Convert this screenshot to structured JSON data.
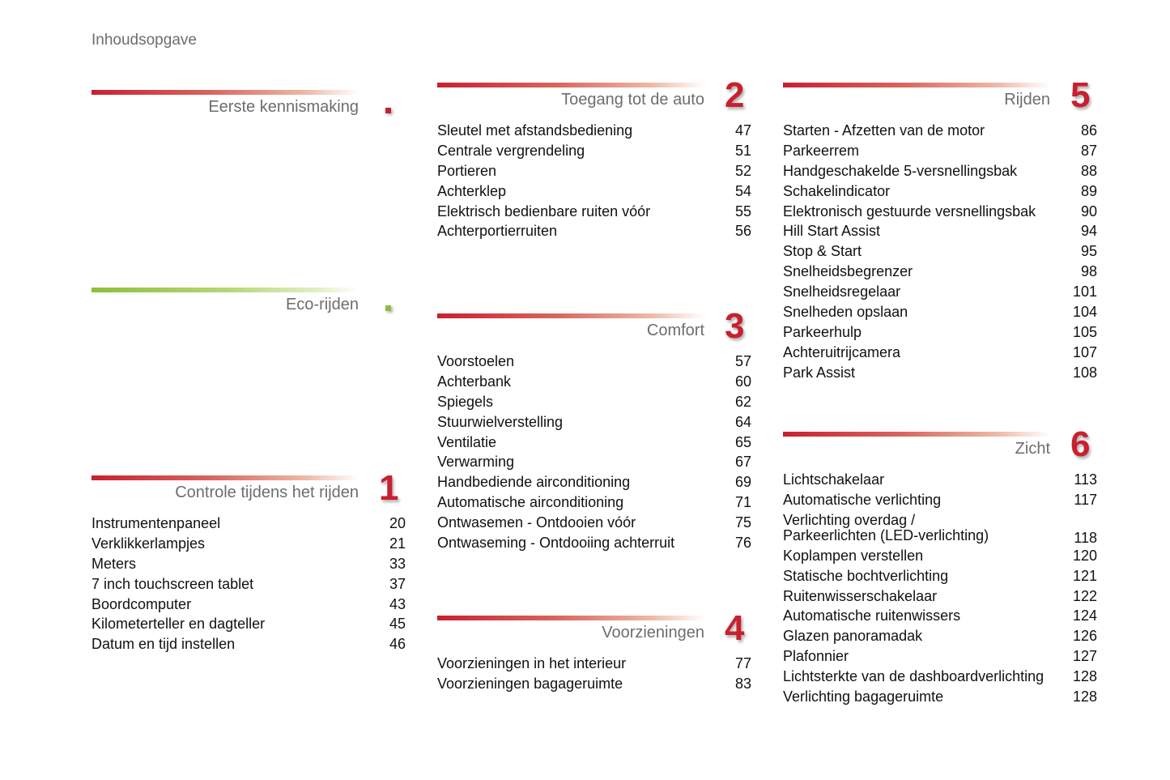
{
  "header": {
    "title": "Inhoudsopgave"
  },
  "colors": {
    "accent_red": "#c8202f",
    "accent_green": "#8dbf3a"
  },
  "sections": [
    {
      "title": "Eerste kennismaking",
      "number": "",
      "marker": "red-square",
      "color": "red",
      "items": []
    },
    {
      "title": "Eco-rijden",
      "number": "",
      "marker": "green-square",
      "color": "green",
      "items": []
    },
    {
      "title": "Controle tijdens het rijden",
      "number": "1",
      "color": "red",
      "items": [
        {
          "label": "Instrumentenpaneel",
          "page": "20"
        },
        {
          "label": "Verklikkerlampjes",
          "page": "21"
        },
        {
          "label": "Meters",
          "page": "33"
        },
        {
          "label": "7 inch touchscreen tablet",
          "page": "37"
        },
        {
          "label": "Boordcomputer",
          "page": "43"
        },
        {
          "label": "Kilometerteller en dagteller",
          "page": "45"
        },
        {
          "label": "Datum en tijd instellen",
          "page": "46"
        }
      ]
    },
    {
      "title": "Toegang tot de auto",
      "number": "2",
      "color": "red",
      "items": [
        {
          "label": "Sleutel met afstandsbediening",
          "page": "47"
        },
        {
          "label": "Centrale vergrendeling",
          "page": "51"
        },
        {
          "label": "Portieren",
          "page": "52"
        },
        {
          "label": "Achterklep",
          "page": "54"
        },
        {
          "label": "Elektrisch bedienbare ruiten vóór",
          "page": "55"
        },
        {
          "label": "Achterportierruiten",
          "page": "56"
        }
      ]
    },
    {
      "title": "Comfort",
      "number": "3",
      "color": "red",
      "items": [
        {
          "label": "Voorstoelen",
          "page": "57"
        },
        {
          "label": "Achterbank",
          "page": "60"
        },
        {
          "label": "Spiegels",
          "page": "62"
        },
        {
          "label": "Stuurwielverstelling",
          "page": "64"
        },
        {
          "label": "Ventilatie",
          "page": "65"
        },
        {
          "label": "Verwarming",
          "page": "67"
        },
        {
          "label": "Handbediende airconditioning",
          "page": "69"
        },
        {
          "label": "Automatische airconditioning",
          "page": "71"
        },
        {
          "label": "Ontwasemen - Ontdooien vóór",
          "page": "75"
        },
        {
          "label": "Ontwaseming - Ontdooiing achterruit",
          "page": "76"
        }
      ]
    },
    {
      "title": "Voorzieningen",
      "number": "4",
      "color": "red",
      "items": [
        {
          "label": "Voorzieningen in het interieur",
          "page": "77"
        },
        {
          "label": "Voorzieningen bagageruimte",
          "page": "83"
        }
      ]
    },
    {
      "title": "Rijden",
      "number": "5",
      "color": "red",
      "items": [
        {
          "label": "Starten - Afzetten van de motor",
          "page": "86"
        },
        {
          "label": "Parkeerrem",
          "page": "87"
        },
        {
          "label": "Handgeschakelde 5-versnellingsbak",
          "page": "88"
        },
        {
          "label": "Schakelindicator",
          "page": "89"
        },
        {
          "label": "Elektronisch gestuurde versnellingsbak",
          "page": "90"
        },
        {
          "label": "Hill Start Assist",
          "page": "94"
        },
        {
          "label": "Stop & Start",
          "page": "95"
        },
        {
          "label": "Snelheidsbegrenzer",
          "page": "98"
        },
        {
          "label": "Snelheidsregelaar",
          "page": "101"
        },
        {
          "label": "Snelheden opslaan",
          "page": "104"
        },
        {
          "label": "Parkeerhulp",
          "page": "105"
        },
        {
          "label": "Achteruitrijcamera",
          "page": "107"
        },
        {
          "label": "Park Assist",
          "page": "108"
        }
      ]
    },
    {
      "title": "Zicht",
      "number": "6",
      "color": "red",
      "items": [
        {
          "label": "Lichtschakelaar",
          "page": "113"
        },
        {
          "label": "Automatische verlichting",
          "page": "117"
        },
        {
          "label": "Verlichting overdag /\nParkeerlichten (LED-verlichting)",
          "page": "118"
        },
        {
          "label": "Koplampen verstellen",
          "page": "120"
        },
        {
          "label": "Statische bochtverlichting",
          "page": "121"
        },
        {
          "label": "Ruitenwisserschakelaar",
          "page": "122"
        },
        {
          "label": "Automatische ruitenwissers",
          "page": "124"
        },
        {
          "label": "Glazen panoramadak",
          "page": "126"
        },
        {
          "label": "Plafonnier",
          "page": "127"
        },
        {
          "label": "Lichtsterkte van de dashboardverlichting",
          "page": "128"
        },
        {
          "label": "Verlichting bagageruimte",
          "page": "128"
        }
      ]
    }
  ]
}
